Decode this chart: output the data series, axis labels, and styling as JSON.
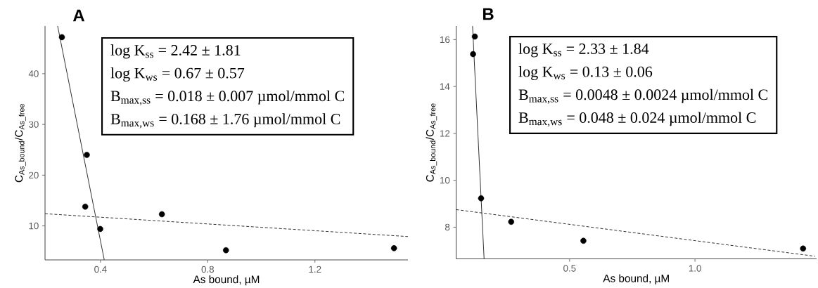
{
  "chart_data": [
    {
      "type": "scatter",
      "title": "A",
      "xlabel": "As bound, µM",
      "ylabel": "C$_{As_bound}$/C$_{As_free}$",
      "xlim": [
        0.193,
        1.547
      ],
      "ylim": [
        3.3,
        49.4
      ],
      "xticks": [
        0.4,
        0.8,
        1.2
      ],
      "yticks": [
        10,
        20,
        30,
        40
      ],
      "series": [
        {
          "color": "#000000",
          "marker": "circle",
          "x": [
            0.256,
            0.349,
            0.343,
            0.399,
            0.629,
            0.868,
            1.495
          ],
          "values": [
            47.2,
            24.0,
            13.8,
            9.4,
            12.3,
            5.2,
            5.6
          ]
        },
        {
          "type": "line",
          "marker": "none",
          "color": "#222222",
          "line_style": "solid",
          "x": [
            0.24,
            0.414
          ],
          "values": [
            49.4,
            3.3
          ]
        },
        {
          "type": "line",
          "marker": "none",
          "color": "#222222",
          "line_style": "dashed",
          "x": [
            0.193,
            1.547
          ],
          "values": [
            12.4,
            7.9
          ]
        }
      ],
      "annotations": [
        "log K$_{ss}$ = 2.42 ± 1.81",
        "log K$_{ws}$ = 0.67 ± 0.57",
        "B$_{max,ss}$ = 0.018 ± 0.007 µmol/mmol C",
        "B$_{max,ws}$ = 0.168 ± 1.76 µmol/mmol C"
      ]
    },
    {
      "type": "scatter",
      "title": "B",
      "xlabel": "As bound, µM",
      "ylabel": "C$_{As_bound}$/C$_{As_free}$",
      "xlim": [
        0.0475,
        1.485
      ],
      "ylim": [
        6.65,
        16.58
      ],
      "xticks": [
        0.5,
        {
          "value": 1.0,
          "label": "1.0"
        }
      ],
      "yticks": [
        8,
        10,
        12,
        14,
        16
      ],
      "series": [
        {
          "color": "#000000",
          "marker": "circle",
          "x": [
            0.122,
            0.115,
            0.147,
            0.267,
            0.555,
            1.431
          ],
          "values": [
            16.13,
            15.38,
            9.23,
            8.23,
            7.42,
            7.09
          ]
        },
        {
          "type": "line",
          "marker": "none",
          "color": "#222222",
          "line_style": "solid",
          "x": [
            0.113,
            0.159
          ],
          "values": [
            16.58,
            6.65
          ]
        },
        {
          "type": "line",
          "marker": "none",
          "color": "#222222",
          "line_style": "dashed",
          "x": [
            0.0475,
            1.479
          ],
          "values": [
            8.75,
            6.76
          ]
        }
      ],
      "annotations": [
        "log K$_{ss}$ = 2.33 ± 1.84",
        "log K$_{ws}$ = 0.13 ± 0.06",
        "B$_{max,ss}$ = 0.0048 ± 0.0024 µmol/mmol C",
        "B$_{max,ws}$ = 0.048 ± 0.024 µmol/mmol C"
      ]
    }
  ]
}
